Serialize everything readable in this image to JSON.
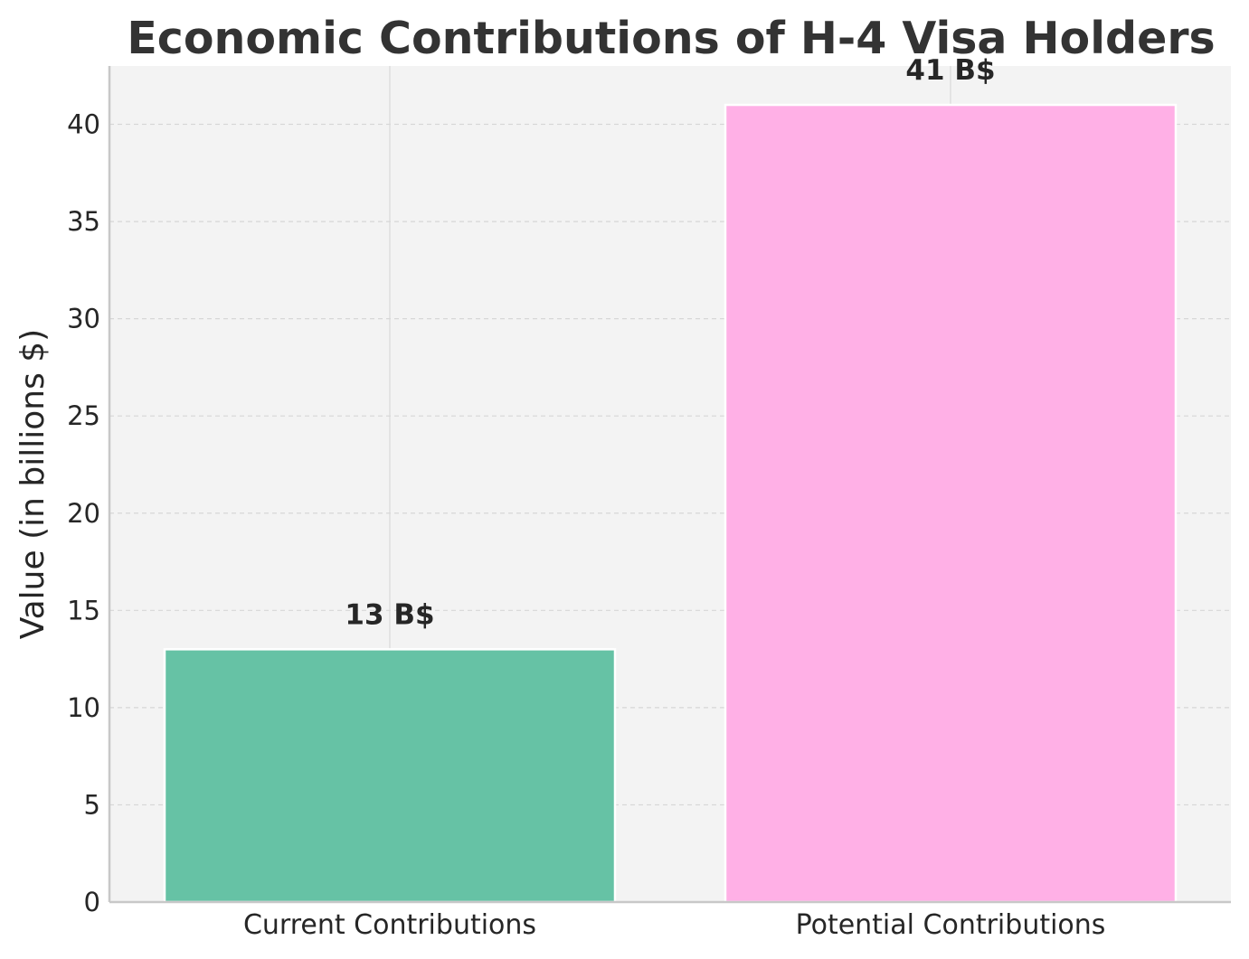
{
  "chart_data": {
    "type": "bar",
    "title": "Economic Contributions of H-4 Visa Holders",
    "xlabel": "",
    "ylabel": "Value (in billions $)",
    "categories": [
      "Current Contributions",
      "Potential Contributions"
    ],
    "values": [
      13,
      41
    ],
    "data_labels": [
      "13 B$",
      "41 B$"
    ],
    "colors": [
      "#66c2a5",
      "#ffb0e6"
    ],
    "ylim": [
      0,
      43
    ],
    "yticks": [
      0,
      5,
      10,
      15,
      20,
      25,
      30,
      35,
      40
    ],
    "grid": "horizontal-dashed",
    "legend": "none",
    "background": "#f3f3f3"
  }
}
